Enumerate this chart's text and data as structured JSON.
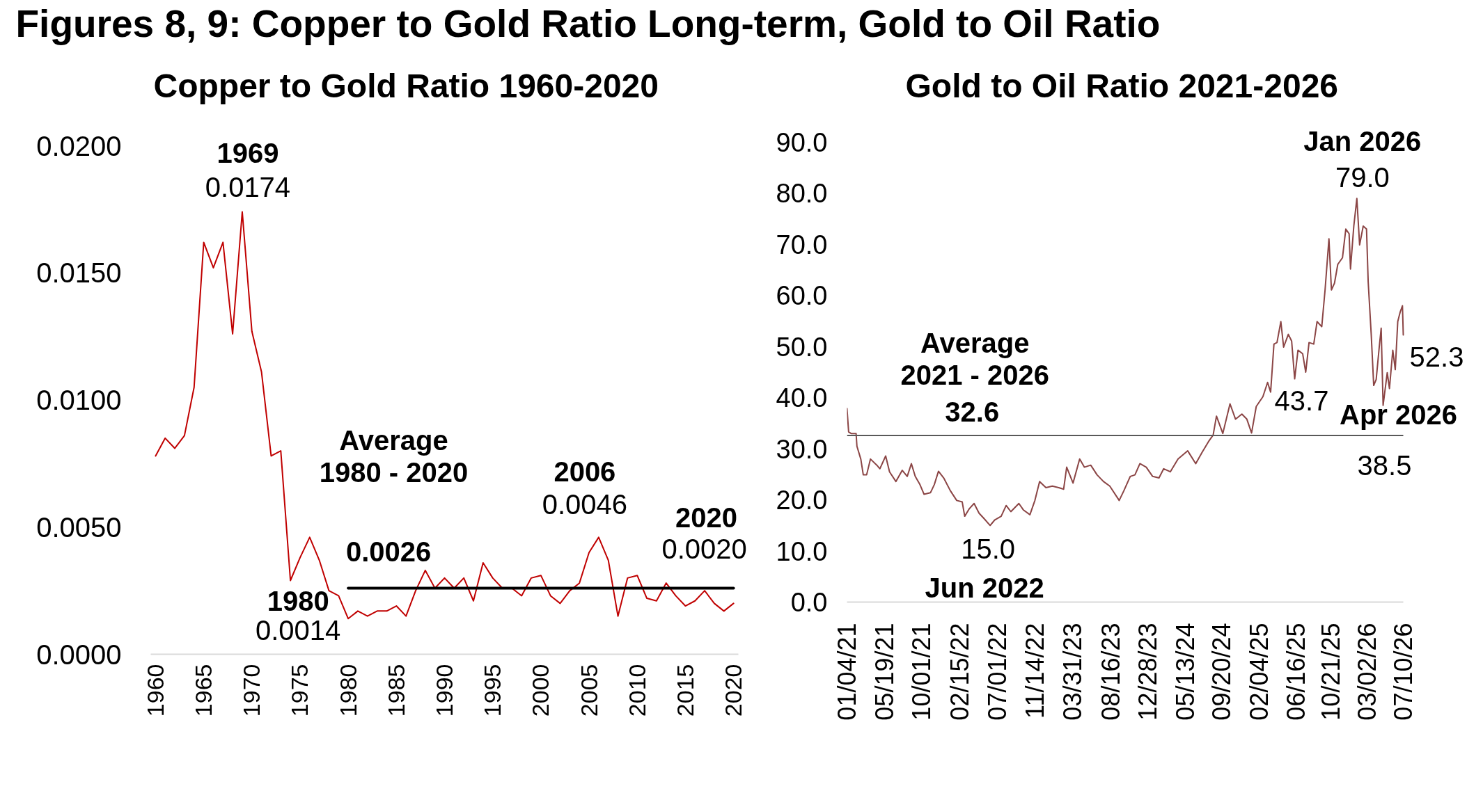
{
  "chart_data": [
    {
      "type": "other",
      "title": "Figures 8, 9: Copper to Gold Ratio Long-term, Gold to Oil Ratio"
    },
    {
      "type": "line",
      "title": "Copper to Gold Ratio 1960-2020",
      "x": [
        1960,
        1961,
        1962,
        1963,
        1964,
        1965,
        1966,
        1967,
        1968,
        1969,
        1970,
        1971,
        1972,
        1973,
        1974,
        1975,
        1976,
        1977,
        1978,
        1979,
        1980,
        1981,
        1982,
        1983,
        1984,
        1985,
        1986,
        1987,
        1988,
        1989,
        1990,
        1991,
        1992,
        1993,
        1994,
        1995,
        1996,
        1997,
        1998,
        1999,
        2000,
        2001,
        2002,
        2003,
        2004,
        2005,
        2006,
        2007,
        2008,
        2009,
        2010,
        2011,
        2012,
        2013,
        2014,
        2015,
        2016,
        2017,
        2018,
        2019,
        2020
      ],
      "series": [
        {
          "color": "#c00000",
          "values": [
            0.0078,
            0.0085,
            0.0081,
            0.0086,
            0.0105,
            0.0162,
            0.0152,
            0.0162,
            0.0126,
            0.0174,
            0.0127,
            0.0111,
            0.0078,
            0.008,
            0.0029,
            0.0038,
            0.0046,
            0.0037,
            0.0025,
            0.0023,
            0.0014,
            0.0017,
            0.0015,
            0.0017,
            0.0017,
            0.0019,
            0.0015,
            0.0025,
            0.0033,
            0.0026,
            0.003,
            0.0026,
            0.003,
            0.0021,
            0.0036,
            0.003,
            0.0026,
            0.0026,
            0.0023,
            0.003,
            0.0031,
            0.0023,
            0.002,
            0.0025,
            0.0028,
            0.004,
            0.0046,
            0.0037,
            0.0015,
            0.003,
            0.0031,
            0.0022,
            0.0021,
            0.0028,
            0.0023,
            0.0019,
            0.0021,
            0.0025,
            0.002,
            0.0017,
            0.002
          ]
        },
        {
          "type": "line",
          "color": "#000000",
          "x": [
            1980,
            2020
          ],
          "values": [
            0.0026,
            0.0026
          ]
        }
      ],
      "xlim": [
        1959.5,
        2020.5
      ],
      "xticks": [
        1960,
        1965,
        1970,
        1975,
        1980,
        1985,
        1990,
        1995,
        2000,
        2005,
        2010,
        2015,
        2020
      ],
      "ylim": [
        0,
        0.02
      ],
      "yticks": [
        {
          "value": 0,
          "label": "0.0000"
        },
        {
          "value": 0.005,
          "label": "0.0050"
        },
        {
          "value": 0.01,
          "label": "0.0100"
        },
        {
          "value": 0.015,
          "label": "0.0150"
        },
        {
          "value": 0.02,
          "label": "0.0200"
        }
      ],
      "annotations": [
        {
          "text": "1969\n0.0174",
          "x": 1969,
          "y": 0.0174
        },
        {
          "text": "1980\n0.0014",
          "x": 1980,
          "y": 0.0014
        },
        "Average\n1980 - 2020",
        {
          "text": "0.0026",
          "x": 1980,
          "y": 0.0026
        },
        {
          "text": "2006\n0.0046",
          "x": 2006,
          "y": 0.0046
        },
        {
          "text": "2020\n0.0020",
          "x": 2020,
          "y": 0.002
        }
      ]
    },
    {
      "type": "line",
      "title": "Gold to Oil Ratio 2021-2026",
      "x": [
        "2021-01-04",
        "2021-01-10",
        "2021-01-19",
        "2021-02-06",
        "2021-02-09",
        "2021-02-23",
        "2021-03-04",
        "2021-03-16",
        "2021-03-30",
        "2021-04-22",
        "2021-05-03",
        "2021-05-24",
        "2021-06-07",
        "2021-06-30",
        "2021-07-23",
        "2021-08-10",
        "2021-08-25",
        "2021-09-08",
        "2021-09-25",
        "2021-10-10",
        "2021-11-02",
        "2021-11-16",
        "2021-12-01",
        "2021-12-20",
        "2022-01-13",
        "2022-02-05",
        "2022-02-25",
        "2022-03-06",
        "2022-03-23",
        "2022-04-09",
        "2022-04-27",
        "2022-05-14",
        "2022-06-06",
        "2022-06-23",
        "2022-07-16",
        "2022-08-03",
        "2022-08-20",
        "2022-09-18",
        "2022-10-05",
        "2022-10-28",
        "2022-11-15",
        "2022-12-02",
        "2022-12-25",
        "2023-01-17",
        "2023-02-09",
        "2023-02-27",
        "2023-03-10",
        "2023-04-02",
        "2023-04-26",
        "2023-05-13",
        "2023-06-05",
        "2023-06-28",
        "2023-07-21",
        "2023-08-13",
        "2023-09-16",
        "2023-10-03",
        "2023-10-26",
        "2023-11-12",
        "2023-11-30",
        "2023-12-23",
        "2024-01-15",
        "2024-02-07",
        "2024-02-24",
        "2024-03-19",
        "2024-04-16",
        "2024-05-21",
        "2024-06-19",
        "2024-07-12",
        "2024-08-04",
        "2024-08-21",
        "2024-09-02",
        "2024-09-25",
        "2024-10-21",
        "2024-11-10",
        "2024-12-03",
        "2024-12-21",
        "2025-01-07",
        "2025-01-24",
        "2025-02-17",
        "2025-03-06",
        "2025-03-17",
        "2025-03-29",
        "2025-04-09",
        "2025-04-23",
        "2025-05-03",
        "2025-05-20",
        "2025-06-01",
        "2025-06-12",
        "2025-06-24",
        "2025-07-11",
        "2025-07-22",
        "2025-08-03",
        "2025-08-20",
        "2025-09-01",
        "2025-09-18",
        "2025-09-30",
        "2025-10-14",
        "2025-10-23",
        "2025-11-03",
        "2025-11-15",
        "2025-12-02",
        "2025-12-14",
        "2025-12-26",
        "2025-12-31",
        "2026-01-12",
        "2026-01-23",
        "2026-02-02",
        "2026-02-15",
        "2026-02-27",
        "2026-03-05",
        "2026-03-16",
        "2026-03-25",
        "2026-04-03",
        "2026-04-14",
        "2026-04-21",
        "2026-04-28",
        "2026-05-13",
        "2026-05-21",
        "2026-06-02",
        "2026-06-11",
        "2026-06-20",
        "2026-06-29",
        "2026-07-07",
        "2026-07-10"
      ],
      "series": [
        {
          "color": "#8b4545",
          "values": [
            37.9,
            33.3,
            33.0,
            33.0,
            30.5,
            28.0,
            24.9,
            24.9,
            28.0,
            26.8,
            26.1,
            28.6,
            25.5,
            23.6,
            25.8,
            24.6,
            27.1,
            24.6,
            23.0,
            21.1,
            21.4,
            23.0,
            25.6,
            24.3,
            21.8,
            19.9,
            19.6,
            16.8,
            18.3,
            19.3,
            17.4,
            16.4,
            15.0,
            16.1,
            16.8,
            18.9,
            17.7,
            19.3,
            18.0,
            17.1,
            19.9,
            23.6,
            22.4,
            22.7,
            22.4,
            22.1,
            26.4,
            23.3,
            28.0,
            26.4,
            26.8,
            24.9,
            23.6,
            22.7,
            19.9,
            21.8,
            24.6,
            24.9,
            27.1,
            26.4,
            24.6,
            24.3,
            26.1,
            25.5,
            28.0,
            29.6,
            27.1,
            29.3,
            31.4,
            32.7,
            36.4,
            33.0,
            38.8,
            35.8,
            36.8,
            35.8,
            33.1,
            38.3,
            40.2,
            43.0,
            41.1,
            50.5,
            50.8,
            54.9,
            49.9,
            52.4,
            51.1,
            43.7,
            49.3,
            48.6,
            45.0,
            50.8,
            50.5,
            54.9,
            53.9,
            61.1,
            71.1,
            61.1,
            62.4,
            66.1,
            67.4,
            73.0,
            72.1,
            65.2,
            73.6,
            79.0,
            69.9,
            73.6,
            73.0,
            62.7,
            52.4,
            42.4,
            43.6,
            49.9,
            53.6,
            38.5,
            44.9,
            41.8,
            49.3,
            45.5,
            54.9,
            56.8,
            58.0,
            52.3
          ]
        }
      ],
      "xlim": [
        "2021-01-04",
        "2026-07-10"
      ],
      "xticks": [
        {
          "value": "2021-01-04",
          "label": "01/04/21"
        },
        {
          "value": "2021-05-19",
          "label": "05/19/21"
        },
        {
          "value": "2021-10-01",
          "label": "10/01/21"
        },
        {
          "value": "2022-02-15",
          "label": "02/15/22"
        },
        {
          "value": "2022-07-01",
          "label": "07/01/22"
        },
        {
          "value": "2022-11-14",
          "label": "11/14/22"
        },
        {
          "value": "2023-03-31",
          "label": "03/31/23"
        },
        {
          "value": "2023-08-16",
          "label": "08/16/23"
        },
        {
          "value": "2023-12-28",
          "label": "12/28/23"
        },
        {
          "value": "2024-05-13",
          "label": "05/13/24"
        },
        {
          "value": "2024-09-20",
          "label": "09/20/24"
        },
        {
          "value": "2025-02-04",
          "label": "02/04/25"
        },
        {
          "value": "2025-06-16",
          "label": "06/16/25"
        },
        {
          "value": "2025-10-21",
          "label": "10/21/25"
        },
        {
          "value": "2026-03-02",
          "label": "03/02/26"
        },
        {
          "value": "2026-07-10",
          "label": "07/10/26"
        }
      ],
      "ylim": [
        0,
        90
      ],
      "yticks": [
        {
          "value": 0,
          "label": "0.0"
        },
        {
          "value": 10,
          "label": "10.0"
        },
        {
          "value": 20,
          "label": "20.0"
        },
        {
          "value": 30,
          "label": "30.0"
        },
        {
          "value": 40,
          "label": "40.0"
        },
        {
          "value": 50,
          "label": "50.0"
        },
        {
          "value": 60,
          "label": "60.0"
        },
        {
          "value": 70,
          "label": "70.0"
        },
        {
          "value": 80,
          "label": "80.0"
        },
        {
          "value": 90,
          "label": "90.0"
        }
      ],
      "ref_lines": [
        {
          "axis": "y",
          "value": 32.6,
          "label": "Average\n2021 - 2026\n32.6",
          "color": "#595959"
        }
      ],
      "annotations": [
        {
          "text": "Jan 2026\n79.0",
          "x": "2026-01-23",
          "y": 79.0
        },
        {
          "text": "15.0\nJun 2022",
          "x": "2022-06-06",
          "y": 15.0
        },
        {
          "text": "43.7",
          "x": "2025-06-12",
          "y": 43.7
        },
        {
          "text": "Apr 2026\n38.5",
          "x": "2026-04-28",
          "y": 38.5
        },
        {
          "text": "52.3",
          "x": "2026-07-10",
          "y": 52.3
        }
      ]
    }
  ]
}
